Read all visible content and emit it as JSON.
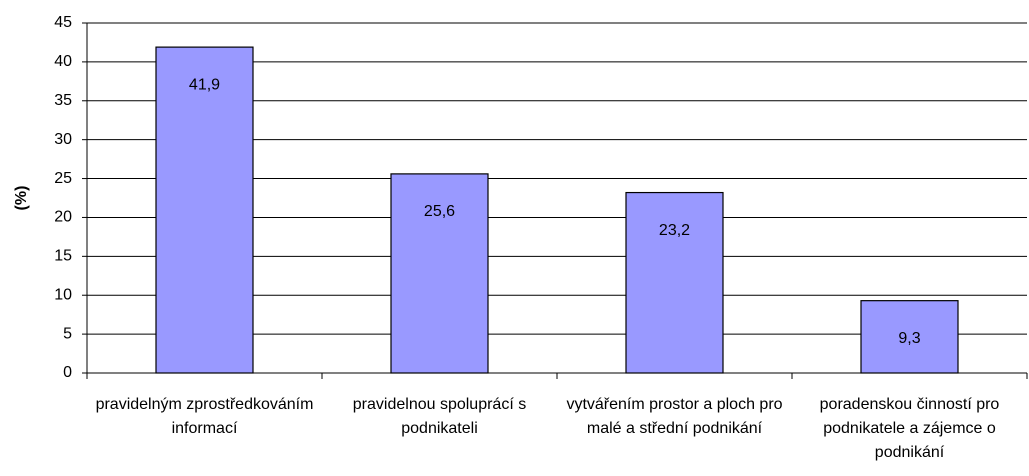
{
  "chart_data": {
    "type": "bar",
    "y_label": "(%)",
    "categories": [
      "pravidelným zprostředkováním informací",
      "pravidelnou spoluprácí s podnikateli",
      "vytvářením prostor a ploch pro malé a střední podnikání",
      "poradenskou činností pro podnikatele a zájemce o podnikání"
    ],
    "values": [
      41.9,
      25.6,
      23.2,
      9.3
    ],
    "value_labels": [
      "41,9",
      "25,6",
      "23,2",
      "9,3"
    ],
    "color": "#9999ff",
    "ylim": [
      0,
      45
    ],
    "yticks": [
      0,
      5,
      10,
      15,
      20,
      25,
      30,
      35,
      40,
      45
    ],
    "grid": true
  }
}
